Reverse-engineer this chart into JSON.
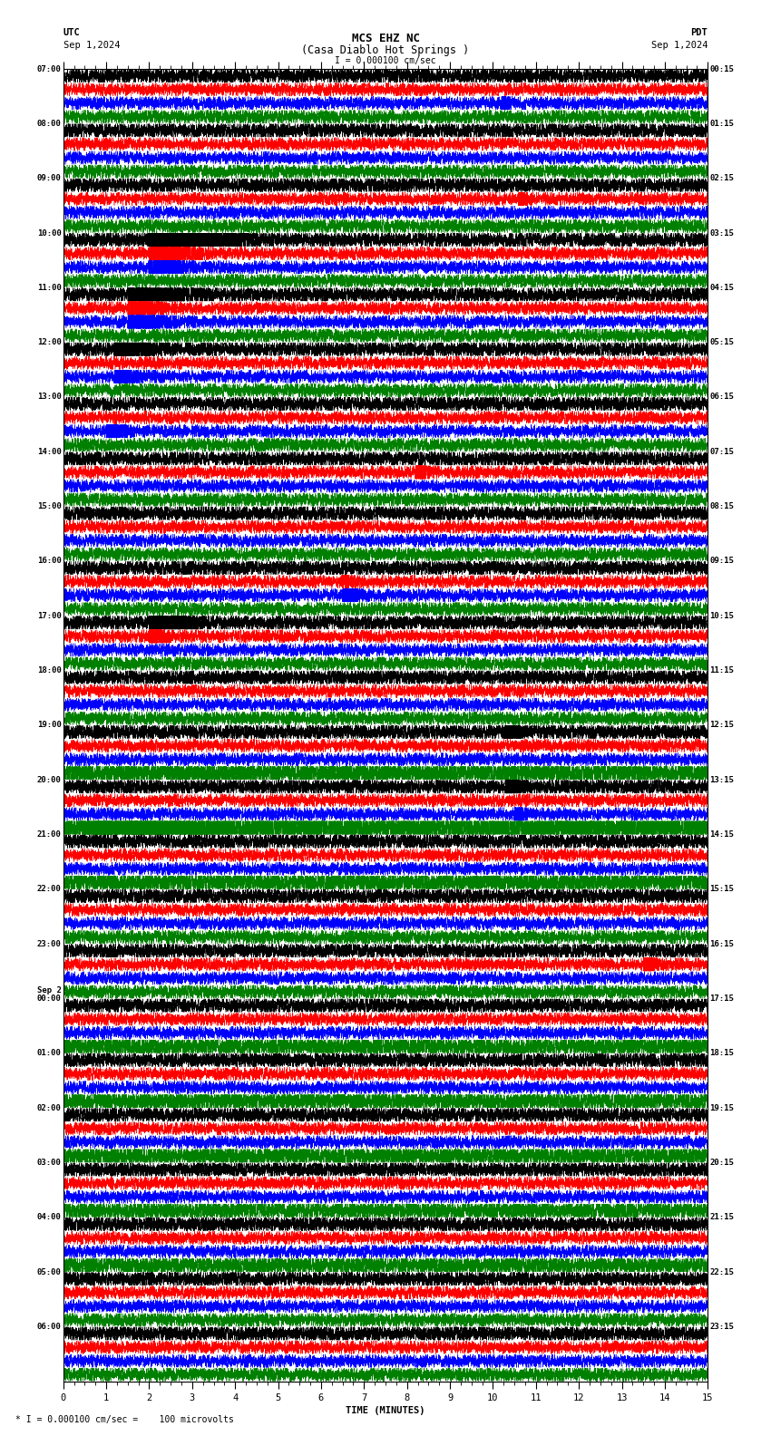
{
  "title_line1": "MCS EHZ NC",
  "title_line2": "(Casa Diablo Hot Springs )",
  "scale_label": "I = 0.000100 cm/sec",
  "utc_label": "UTC",
  "pdt_label": "PDT",
  "date_left": "Sep 1,2024",
  "date_right": "Sep 1,2024",
  "xlabel": "TIME (MINUTES)",
  "footer_label": "* I = 0.000100 cm/sec =    100 microvolts",
  "left_times": [
    "07:00",
    "08:00",
    "09:00",
    "10:00",
    "11:00",
    "12:00",
    "13:00",
    "14:00",
    "15:00",
    "16:00",
    "17:00",
    "18:00",
    "19:00",
    "20:00",
    "21:00",
    "22:00",
    "23:00",
    "Sep 2\n00:00",
    "01:00",
    "02:00",
    "03:00",
    "04:00",
    "05:00",
    "06:00"
  ],
  "right_times": [
    "00:15",
    "01:15",
    "02:15",
    "03:15",
    "04:15",
    "05:15",
    "06:15",
    "07:15",
    "08:15",
    "09:15",
    "10:15",
    "11:15",
    "12:15",
    "13:15",
    "14:15",
    "15:15",
    "16:15",
    "17:15",
    "18:15",
    "19:15",
    "20:15",
    "21:15",
    "22:15",
    "23:15"
  ],
  "n_rows": 24,
  "n_traces_per_row": 4,
  "colors": [
    "black",
    "red",
    "blue",
    "green"
  ],
  "bg_color": "white",
  "xmin": 0,
  "xmax": 15,
  "title_fontsize": 9,
  "label_fontsize": 7.5,
  "tick_fontsize": 7.5
}
